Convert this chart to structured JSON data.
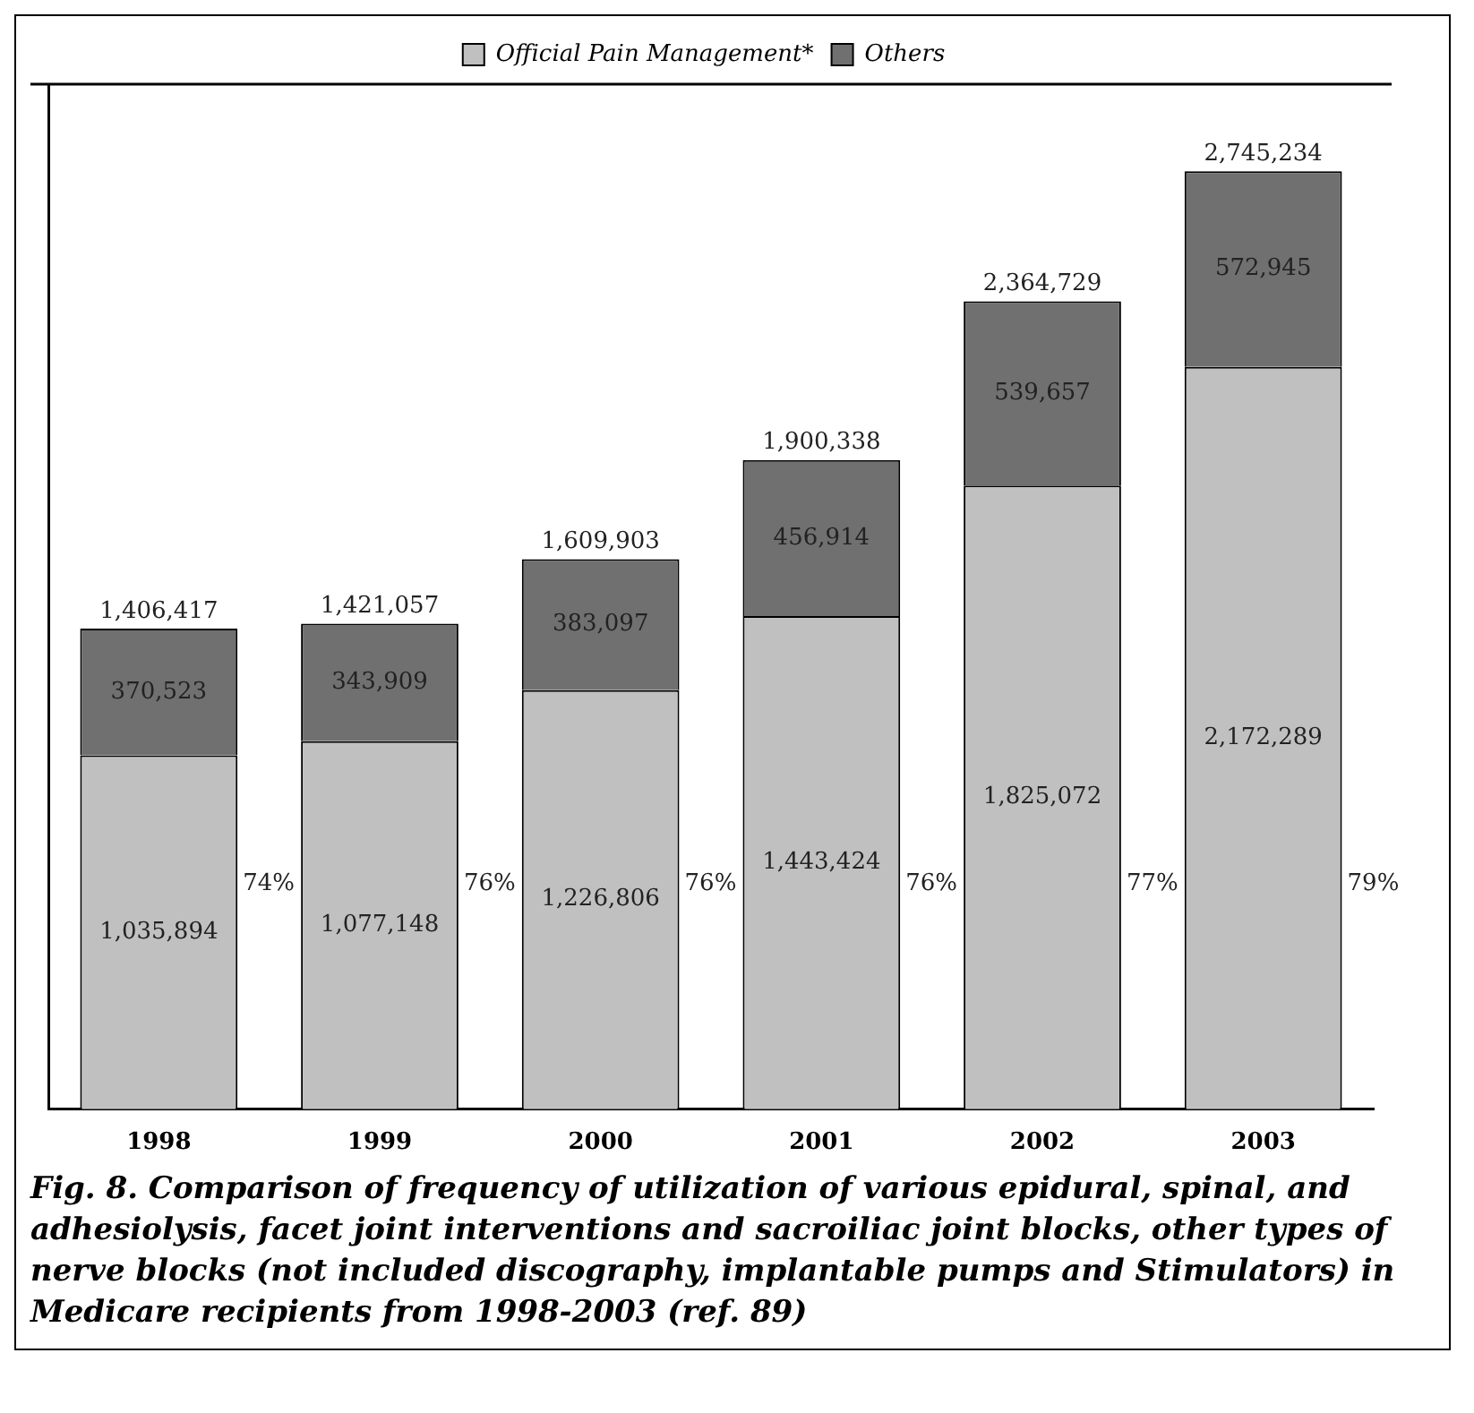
{
  "chart_data": {
    "type": "bar",
    "stacked": true,
    "categories": [
      "1998",
      "1999",
      "2000",
      "2001",
      "2002",
      "2003"
    ],
    "series": [
      {
        "name": "Official Pain Management*",
        "color": "#c0c0c0",
        "values": [
          1035894,
          1077148,
          1226806,
          1443424,
          1825072,
          2172289
        ],
        "value_labels": [
          "1,035,894",
          "1,077,148",
          "1,226,806",
          "1,443,424",
          "1,825,072",
          "2,172,289"
        ]
      },
      {
        "name": "Others",
        "color": "#707070",
        "values": [
          370523,
          343909,
          383097,
          456914,
          539657,
          572945
        ],
        "value_labels": [
          "370,523",
          "343,909",
          "383,097",
          "456,914",
          "539,657",
          "572,945"
        ]
      }
    ],
    "totals": [
      "1,406,417",
      "1,421,057",
      "1,609,903",
      "1,900,338",
      "2,364,729",
      "2,745,234"
    ],
    "tick_labels": "x",
    "legend": "top",
    "grid": false,
    "annotations": [
      "74%",
      "76%",
      "76%",
      "76%",
      "77%",
      "79%",
      "Fig. 8. Comparison of frequency of utilization of various epidural, spinal, and adhesiolysis, facet joint interventions and sacroiliac joint blocks, other types of nerve blocks (not included discography, implantable pumps and Stimulators) in Medicare recipients from 1998-2003 (ref. 89)"
    ]
  }
}
